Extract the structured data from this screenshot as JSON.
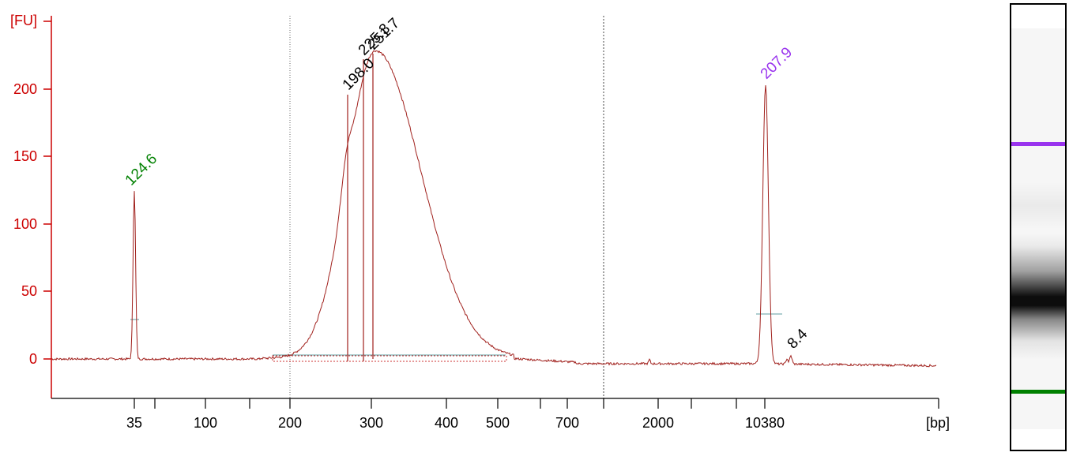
{
  "chart_data": {
    "type": "line",
    "ylabel": "[FU]",
    "xlabel": "[bp]",
    "ylim": [
      -30,
      255
    ],
    "y_ticks": [
      "0",
      "50",
      "100",
      "150",
      "200"
    ],
    "x_ticks": [
      "35",
      "100",
      "200",
      "300",
      "400",
      "500",
      "700",
      "2000",
      "10380"
    ],
    "peaks": [
      {
        "label": "124.6",
        "color": "#008000"
      },
      {
        "label": "198.0",
        "color": "#000000"
      },
      {
        "label": "225.3",
        "color": "#000000"
      },
      {
        "label": "251.7",
        "color": "#000000"
      },
      {
        "label": "207.9",
        "color": "#9933ee"
      },
      {
        "label": "8.4",
        "color": "#000000"
      }
    ],
    "colors": {
      "trace": "#a0201c",
      "axis": "#cc0000",
      "baseline": "#5f9ea0"
    }
  },
  "gel": {
    "bands": [
      "upper-marker",
      "library-smear",
      "lower-marker"
    ]
  }
}
